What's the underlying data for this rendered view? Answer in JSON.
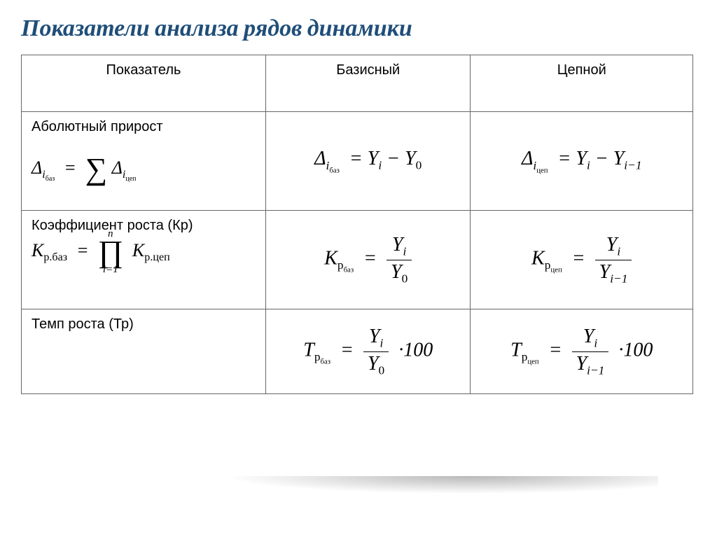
{
  "title": "Показатели анализа рядов динамики",
  "title_style": {
    "color": "#1f4e79",
    "fontsize": 34,
    "weight": "bold",
    "italic": true
  },
  "table": {
    "border_color": "#666666",
    "columns": [
      "Показатель",
      "Базисный",
      "Цепной"
    ],
    "header_fontsize": 20,
    "rows": [
      {
        "label": "Аболютный прирост",
        "extra_formula": "Δ_{i_баз} = Σ Δ_{i_цеп}",
        "base": "Δ_{i_баз} = Y_i − Y_0",
        "chain": "Δ_{i_цеп} = Y_i − Y_{i−1}"
      },
      {
        "label": "Коэффициент роста (Кр)",
        "extra_formula": "K_{р.баз} = ∏_{i=1}^{n} K_{р.цеп}",
        "base": "K_{р_баз} = Y_i / Y_0",
        "chain": "K_{р_цеп} = Y_i / Y_{i−1}"
      },
      {
        "label": "Темп роста (Тр)",
        "extra_formula": "",
        "base": "T_{р_баз} = (Y_i / Y_0) · 100",
        "chain": "T_{р_цеп} = (Y_i / Y_{i−1}) · 100"
      }
    ]
  },
  "colors": {
    "background": "#ffffff",
    "title": "#1f4e79",
    "text": "#000000",
    "border": "#666666"
  }
}
